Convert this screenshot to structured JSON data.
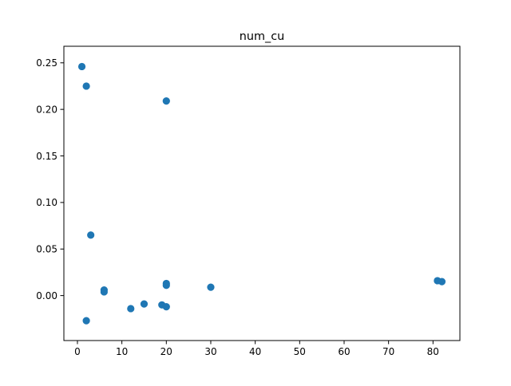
{
  "chart_data": {
    "type": "scatter",
    "title": "num_cu",
    "xlabel": "",
    "ylabel": "",
    "xlim": [
      -3.05,
      86.05
    ],
    "ylim": [
      -0.0483,
      0.2678
    ],
    "x_ticks": [
      0,
      10,
      20,
      30,
      40,
      50,
      60,
      70,
      80
    ],
    "y_ticks": [
      0.0,
      0.05,
      0.1,
      0.15,
      0.2,
      0.25
    ],
    "x_tick_labels": [
      "0",
      "10",
      "20",
      "30",
      "40",
      "50",
      "60",
      "70",
      "80"
    ],
    "y_tick_labels": [
      "0.00",
      "0.05",
      "0.10",
      "0.15",
      "0.20",
      "0.25"
    ],
    "grid": false,
    "legend": "none",
    "colors": {
      "marker": "#1f77b4",
      "axes": "#000000",
      "background": "#ffffff"
    },
    "series": [
      {
        "points": [
          {
            "x": 1,
            "y": 0.246
          },
          {
            "x": 2,
            "y": 0.225
          },
          {
            "x": 20,
            "y": 0.209
          },
          {
            "x": 3,
            "y": 0.065
          },
          {
            "x": 6,
            "y": 0.006
          },
          {
            "x": 6,
            "y": 0.004
          },
          {
            "x": 2,
            "y": -0.027
          },
          {
            "x": 12,
            "y": -0.014
          },
          {
            "x": 15,
            "y": -0.009
          },
          {
            "x": 19,
            "y": -0.01
          },
          {
            "x": 20,
            "y": -0.012
          },
          {
            "x": 20,
            "y": 0.013
          },
          {
            "x": 20,
            "y": 0.011
          },
          {
            "x": 30,
            "y": 0.009
          },
          {
            "x": 81,
            "y": 0.016
          },
          {
            "x": 82,
            "y": 0.015
          }
        ]
      }
    ]
  }
}
